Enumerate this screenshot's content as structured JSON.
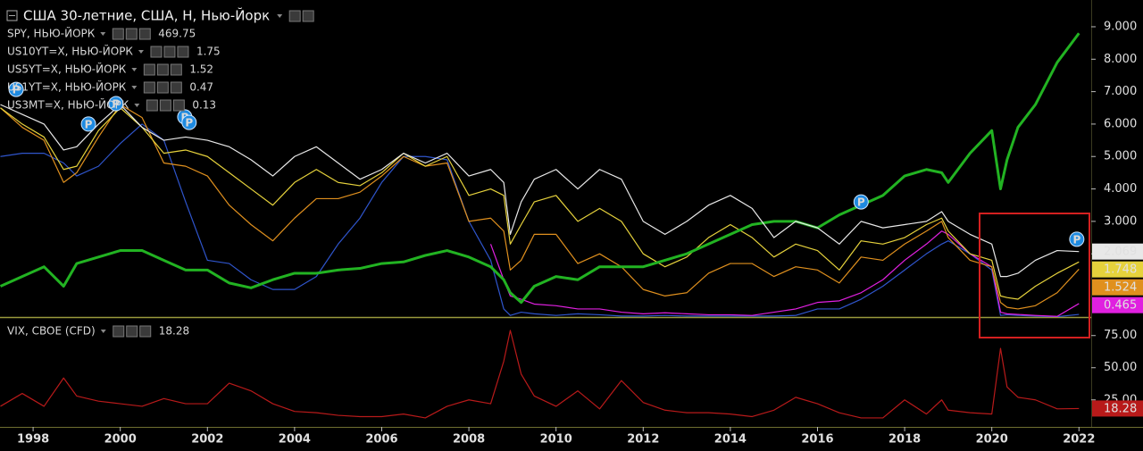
{
  "chart_data": [
    {
      "type": "line",
      "title": "США 30-летние, США, Н, Нью-Йорк",
      "x": [
        1997.25,
        1997.75,
        1998.25,
        1998.7,
        1999.0,
        1999.5,
        2000.0,
        2000.5,
        2001.0,
        2001.5,
        2002.0,
        2002.5,
        2003.0,
        2003.5,
        2004.0,
        2004.5,
        2005.0,
        2005.5,
        2006.0,
        2006.5,
        2007.0,
        2007.5,
        2008.0,
        2008.5,
        2008.8,
        2008.95,
        2009.2,
        2009.5,
        2010.0,
        2010.5,
        2011.0,
        2011.5,
        2012.0,
        2012.5,
        2013.0,
        2013.5,
        2014.0,
        2014.5,
        2015.0,
        2015.5,
        2016.0,
        2016.5,
        2017.0,
        2017.5,
        2018.0,
        2018.5,
        2018.85,
        2019.0,
        2019.5,
        2020.0,
        2020.2,
        2020.35,
        2020.6,
        2021.0,
        2021.5,
        2022.0
      ],
      "xlim": [
        1997.24,
        2022.24
      ],
      "ylim": [
        0.05,
        9.55
      ],
      "yticks": [
        {
          "value": 2,
          "label": "2.000"
        },
        {
          "value": 3,
          "label": "3.000"
        },
        {
          "value": 4,
          "label": "4.000"
        },
        {
          "value": 5,
          "label": "5.000"
        },
        {
          "value": 6,
          "label": "6.000"
        },
        {
          "value": 7,
          "label": "7.000"
        },
        {
          "value": 8,
          "label": "8.000"
        },
        {
          "value": 9,
          "label": "9.000"
        }
      ],
      "series": [
        {
          "color": "#e8e8e8",
          "width": 1.2,
          "last_label": true,
          "values": [
            6.6,
            6.3,
            6.0,
            5.2,
            5.3,
            6.0,
            6.6,
            5.9,
            5.5,
            5.6,
            5.5,
            5.3,
            4.9,
            4.4,
            5.0,
            5.3,
            4.8,
            4.3,
            4.6,
            5.1,
            4.8,
            5.1,
            4.4,
            4.6,
            4.2,
            2.6,
            3.6,
            4.3,
            4.6,
            4.0,
            4.6,
            4.3,
            3.0,
            2.6,
            3.0,
            3.5,
            3.8,
            3.4,
            2.5,
            3.0,
            2.8,
            2.3,
            3.0,
            2.8,
            2.9,
            3.0,
            3.3,
            3.0,
            2.6,
            2.3,
            1.3,
            1.3,
            1.4,
            1.8,
            2.1,
            2.069
          ]
        },
        {
          "name": "SPY, НЬЮ-ЙОРК",
          "color": "#22b322",
          "width": 3,
          "legend_value": 469.75,
          "values": [
            1.0,
            1.3,
            1.6,
            1.0,
            1.7,
            1.9,
            2.1,
            2.1,
            1.8,
            1.5,
            1.5,
            1.1,
            0.95,
            1.2,
            1.4,
            1.4,
            1.5,
            1.55,
            1.7,
            1.75,
            1.95,
            2.1,
            1.9,
            1.6,
            1.2,
            0.8,
            0.5,
            1.0,
            1.3,
            1.2,
            1.6,
            1.6,
            1.6,
            1.8,
            2.0,
            2.3,
            2.6,
            2.9,
            3.0,
            3.0,
            2.8,
            3.2,
            3.5,
            3.8,
            4.4,
            4.6,
            4.5,
            4.2,
            5.1,
            5.8,
            4.0,
            4.9,
            5.9,
            6.6,
            7.9,
            8.8
          ]
        },
        {
          "name": "US10YT=X, НЬЮ-ЙОРК",
          "color": "#e6d23c",
          "width": 1.2,
          "legend_value": 1.75,
          "last_label": true,
          "values": [
            6.5,
            6.0,
            5.6,
            4.6,
            4.7,
            5.8,
            6.5,
            5.9,
            5.1,
            5.2,
            5.0,
            4.5,
            4.0,
            3.5,
            4.2,
            4.6,
            4.2,
            4.1,
            4.5,
            5.1,
            4.7,
            5.0,
            3.8,
            4.0,
            3.8,
            2.3,
            2.9,
            3.6,
            3.8,
            3.0,
            3.4,
            3.0,
            2.0,
            1.6,
            1.9,
            2.5,
            2.9,
            2.5,
            1.9,
            2.3,
            2.1,
            1.5,
            2.4,
            2.3,
            2.5,
            2.9,
            3.1,
            2.7,
            2.0,
            1.8,
            0.7,
            0.65,
            0.6,
            1.0,
            1.4,
            1.748
          ]
        },
        {
          "name": "US5YT=X, НЬЮ-ЙОРК",
          "color": "#e0901e",
          "width": 1.2,
          "legend_value": 1.52,
          "last_label": true,
          "values": [
            6.5,
            5.9,
            5.5,
            4.2,
            4.5,
            5.6,
            6.6,
            6.2,
            4.8,
            4.7,
            4.4,
            3.5,
            2.9,
            2.4,
            3.1,
            3.7,
            3.7,
            3.9,
            4.4,
            5.0,
            4.7,
            4.8,
            3.0,
            3.1,
            2.7,
            1.5,
            1.8,
            2.6,
            2.6,
            1.7,
            2.0,
            1.6,
            0.9,
            0.7,
            0.8,
            1.4,
            1.7,
            1.7,
            1.3,
            1.6,
            1.5,
            1.1,
            1.9,
            1.8,
            2.3,
            2.7,
            3.0,
            2.5,
            1.8,
            1.6,
            0.5,
            0.35,
            0.3,
            0.4,
            0.8,
            1.524
          ]
        },
        {
          "name": "US1YT=X, НЬЮ-ЙОРК",
          "color": "#e020e0",
          "width": 1.2,
          "legend_value": 0.47,
          "last_label": true,
          "values": [
            null,
            null,
            null,
            null,
            null,
            null,
            null,
            null,
            null,
            null,
            null,
            null,
            null,
            null,
            null,
            null,
            null,
            null,
            null,
            null,
            null,
            null,
            null,
            2.3,
            1.2,
            0.7,
            0.6,
            0.45,
            0.4,
            0.3,
            0.3,
            0.2,
            0.15,
            0.18,
            0.15,
            0.12,
            0.12,
            0.1,
            0.2,
            0.3,
            0.5,
            0.55,
            0.8,
            1.2,
            1.8,
            2.3,
            2.7,
            2.6,
            2.0,
            1.6,
            0.2,
            0.15,
            0.13,
            0.1,
            0.07,
            0.465
          ]
        },
        {
          "name": "US3MT=X, НЬЮ-ЙОРК",
          "color": "#2f55cc",
          "value_color": "#6aa6d8",
          "width": 1.2,
          "legend_value": 0.13,
          "values": [
            5.0,
            5.1,
            5.1,
            4.8,
            4.4,
            4.7,
            5.4,
            6.0,
            5.5,
            3.6,
            1.8,
            1.7,
            1.2,
            0.9,
            0.9,
            1.3,
            2.3,
            3.1,
            4.2,
            5.0,
            5.0,
            4.9,
            3.0,
            1.8,
            0.3,
            0.1,
            0.2,
            0.15,
            0.1,
            0.15,
            0.12,
            0.08,
            0.08,
            0.1,
            0.08,
            0.08,
            0.08,
            0.08,
            0.08,
            0.1,
            0.3,
            0.3,
            0.6,
            1.0,
            1.5,
            2.0,
            2.3,
            2.4,
            2.0,
            1.5,
            0.1,
            0.12,
            0.1,
            0.08,
            0.06,
            0.13
          ]
        }
      ],
      "markers": {
        "label": "P",
        "points": [
          {
            "x": 1997.61,
            "y": 7.07
          },
          {
            "x": 1999.27,
            "y": 6.0
          },
          {
            "x": 1999.9,
            "y": 6.63
          },
          {
            "x": 2001.48,
            "y": 6.22
          },
          {
            "x": 2001.58,
            "y": 6.05
          },
          {
            "x": 2017.0,
            "y": 3.6
          },
          {
            "x": 2021.95,
            "y": 2.45
          }
        ]
      }
    },
    {
      "type": "line",
      "x": [
        1997.25,
        1997.75,
        1998.25,
        1998.7,
        1999.0,
        1999.5,
        2000.0,
        2000.5,
        2001.0,
        2001.5,
        2002.0,
        2002.5,
        2003.0,
        2003.5,
        2004.0,
        2004.5,
        2005.0,
        2005.5,
        2006.0,
        2006.5,
        2007.0,
        2007.5,
        2008.0,
        2008.5,
        2008.8,
        2008.95,
        2009.2,
        2009.5,
        2010.0,
        2010.5,
        2011.0,
        2011.5,
        2012.0,
        2012.5,
        2013.0,
        2013.5,
        2014.0,
        2014.5,
        2015.0,
        2015.5,
        2016.0,
        2016.5,
        2017.0,
        2017.5,
        2018.0,
        2018.5,
        2018.85,
        2019.0,
        2019.5,
        2020.0,
        2020.2,
        2020.35,
        2020.6,
        2021.0,
        2021.5,
        2022.0
      ],
      "xlim": [
        1997.24,
        2022.24
      ],
      "xticks": [
        1998,
        2000,
        2002,
        2004,
        2006,
        2008,
        2010,
        2012,
        2014,
        2016,
        2018,
        2020,
        2022
      ],
      "ylim": [
        4,
        88
      ],
      "yticks": [
        {
          "value": 25,
          "label": "25.00"
        },
        {
          "value": 50,
          "label": "50.00"
        },
        {
          "value": 75,
          "label": "75.00"
        }
      ],
      "series": [
        {
          "name": "VIX, CBOE (CFD)",
          "color": "#b81a1a",
          "value_color": "#e03030",
          "width": 1.2,
          "legend_value": 18.28,
          "last_label": true,
          "values": [
            20,
            30,
            20,
            42,
            28,
            24,
            22,
            20,
            26,
            22,
            22,
            38,
            32,
            22,
            16,
            15,
            13,
            12,
            12,
            14,
            11,
            20,
            25,
            22,
            55,
            79,
            45,
            28,
            20,
            32,
            18,
            40,
            23,
            17,
            15,
            15,
            14,
            12,
            17,
            27,
            22,
            15,
            11,
            11,
            25,
            14,
            25,
            17,
            15,
            14,
            65,
            35,
            27,
            25,
            18,
            18.28
          ]
        }
      ]
    }
  ]
}
